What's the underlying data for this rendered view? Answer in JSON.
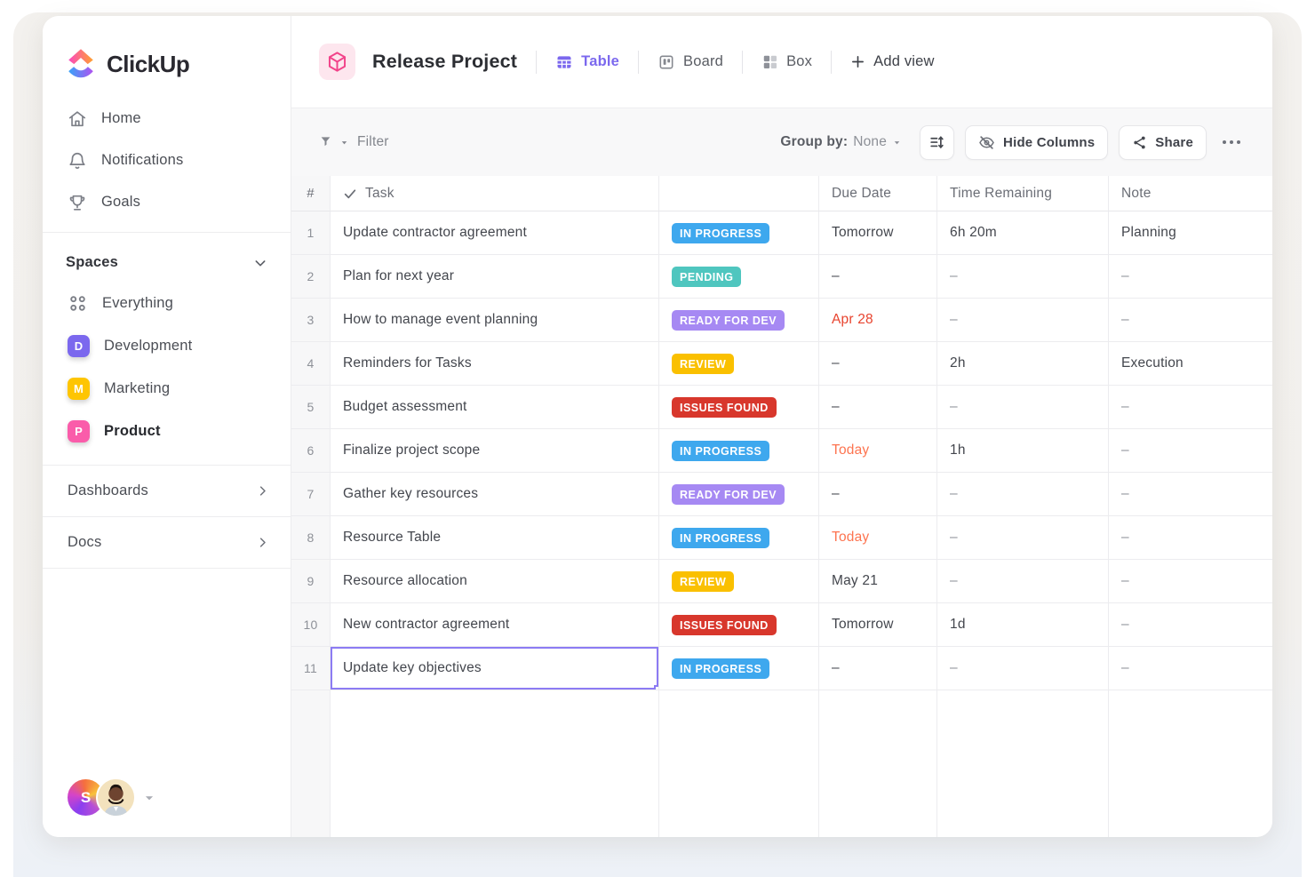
{
  "app": {
    "brand": "ClickUp"
  },
  "sidebar": {
    "nav": [
      {
        "icon": "home-icon",
        "label": "Home"
      },
      {
        "icon": "bell-icon",
        "label": "Notifications"
      },
      {
        "icon": "trophy-icon",
        "label": "Goals"
      }
    ],
    "spaces_header": "Spaces",
    "spaces": [
      {
        "badge": "",
        "label": "Everything"
      },
      {
        "badge": "D",
        "badge_color": "#7b68ee",
        "label": "Development"
      },
      {
        "badge": "M",
        "badge_color": "#fec501",
        "label": "Marketing"
      },
      {
        "badge": "P",
        "badge_color": "#fa5caa",
        "label": "Product",
        "active": true
      }
    ],
    "links": [
      {
        "label": "Dashboards"
      },
      {
        "label": "Docs"
      }
    ],
    "avatar_initial": "S"
  },
  "header": {
    "title": "Release Project",
    "views": [
      {
        "label": "Table",
        "active": true
      },
      {
        "label": "Board",
        "active": false
      },
      {
        "label": "Box",
        "active": false
      }
    ],
    "add_view_label": "Add view"
  },
  "toolbar": {
    "filter_label": "Filter",
    "group_by_label": "Group by:",
    "group_by_value": "None",
    "hide_columns_label": "Hide Columns",
    "share_label": "Share"
  },
  "table": {
    "columns": {
      "num": "#",
      "task": "Task",
      "status": "",
      "due": "Due Date",
      "time": "Time Remaining",
      "note": "Note"
    },
    "status_colors": {
      "IN PROGRESS": "#3ea8ee",
      "PENDING": "#4fc6bf",
      "READY FOR DEV": "#a689f3",
      "REVIEW": "#fac000",
      "ISSUES FOUND": "#d8372c"
    },
    "due_colors": {
      "default": "#43464d",
      "red": "#e8432e",
      "orange": "#fd7450"
    },
    "rows": [
      {
        "num": "1",
        "task": "Update contractor agreement",
        "status": "IN PROGRESS",
        "due": "Tomorrow",
        "due_color": "default",
        "time": "6h 20m",
        "note": "Planning"
      },
      {
        "num": "2",
        "task": "Plan for next year",
        "status": "PENDING",
        "due": "–",
        "due_color": "default",
        "time": "–",
        "note": "–"
      },
      {
        "num": "3",
        "task": "How to manage event planning",
        "status": "READY FOR DEV",
        "due": "Apr 28",
        "due_color": "red",
        "time": "–",
        "note": "–"
      },
      {
        "num": "4",
        "task": "Reminders for Tasks",
        "status": "REVIEW",
        "due": "–",
        "due_color": "default",
        "time": "2h",
        "note": "Execution"
      },
      {
        "num": "5",
        "task": "Budget assessment",
        "status": "ISSUES FOUND",
        "due": "–",
        "due_color": "default",
        "time": "–",
        "note": "–"
      },
      {
        "num": "6",
        "task": "Finalize project scope",
        "status": "IN PROGRESS",
        "due": "Today",
        "due_color": "orange",
        "time": "1h",
        "note": "–"
      },
      {
        "num": "7",
        "task": "Gather key resources",
        "status": "READY FOR DEV",
        "due": "–",
        "due_color": "default",
        "time": "–",
        "note": "–"
      },
      {
        "num": "8",
        "task": "Resource Table",
        "status": "IN PROGRESS",
        "due": "Today",
        "due_color": "orange",
        "time": "–",
        "note": "–"
      },
      {
        "num": "9",
        "task": "Resource allocation",
        "status": "REVIEW",
        "due": "May 21",
        "due_color": "default",
        "time": "–",
        "note": "–"
      },
      {
        "num": "10",
        "task": "New contractor agreement",
        "status": "ISSUES FOUND",
        "due": "Tomorrow",
        "due_color": "default",
        "time": "1d",
        "note": "–"
      },
      {
        "num": "11",
        "task": "Update key objectives",
        "status": "IN PROGRESS",
        "due": "–",
        "due_color": "default",
        "time": "–",
        "note": "–",
        "selected": true
      }
    ]
  }
}
